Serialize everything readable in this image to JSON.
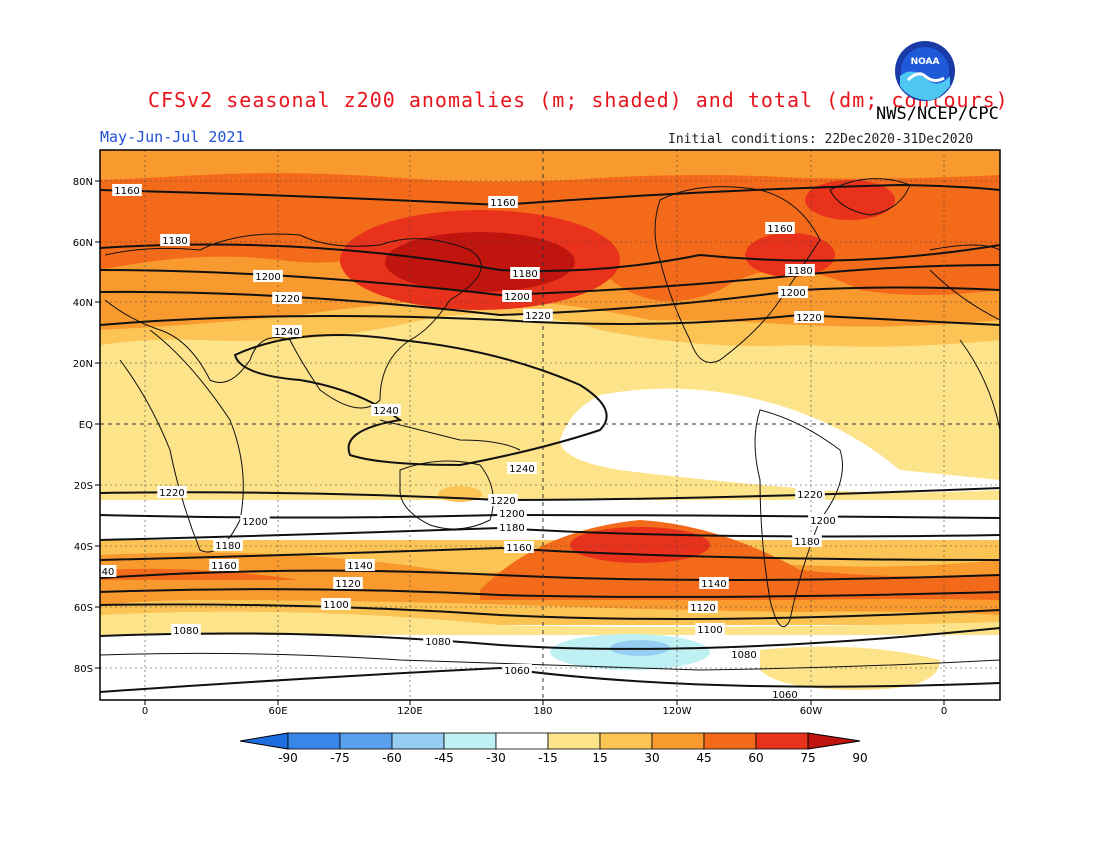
{
  "title": "CFSv2 seasonal z200 anomalies (m; shaded) and total (dm; contours)",
  "period": "May-Jun-Jul 2021",
  "initial_conditions": "Initial conditions: 22Dec2020-31Dec2020",
  "agency": "NWS/NCEP/CPC",
  "logo_text": "NOAA",
  "colors": {
    "title": "#e8141c",
    "period": "#2050d8",
    "scale": [
      "#1e6ee0",
      "#3a86e8",
      "#5aa0ee",
      "#96cdf2",
      "#bff0f4",
      "#ffffff",
      "#fde38a",
      "#fbc455",
      "#f99a2e",
      "#f36a1a",
      "#e8321c",
      "#c0140e"
    ]
  },
  "lat_labels": [
    "80N",
    "60N",
    "40N",
    "20N",
    "EQ",
    "20S",
    "40S",
    "60S",
    "80S"
  ],
  "lon_labels": [
    "0",
    "60E",
    "120E",
    "180",
    "120W",
    "60W",
    "0"
  ],
  "colorbar_labels": [
    "-90",
    "-75",
    "-60",
    "-45",
    "-30",
    "-15",
    "15",
    "30",
    "45",
    "60",
    "75",
    "90"
  ],
  "contour_labels": [
    {
      "text": "1160"
    },
    {
      "text": "1160"
    },
    {
      "text": "1160"
    },
    {
      "text": "1180"
    },
    {
      "text": "1180"
    },
    {
      "text": "1180"
    },
    {
      "text": "1200"
    },
    {
      "text": "1200"
    },
    {
      "text": "1200"
    },
    {
      "text": "1220"
    },
    {
      "text": "1220"
    },
    {
      "text": "1220"
    },
    {
      "text": "1240"
    },
    {
      "text": "1240"
    },
    {
      "text": "1240"
    },
    {
      "text": "1220"
    },
    {
      "text": "1220"
    },
    {
      "text": "1220"
    },
    {
      "text": "1200"
    },
    {
      "text": "1200"
    },
    {
      "text": "1200"
    },
    {
      "text": "1180"
    },
    {
      "text": "1180"
    },
    {
      "text": "1180"
    },
    {
      "text": "1160"
    },
    {
      "text": "1160"
    },
    {
      "text": "40"
    },
    {
      "text": "1140"
    },
    {
      "text": "1140"
    },
    {
      "text": "1120"
    },
    {
      "text": "1120"
    },
    {
      "text": "1100"
    },
    {
      "text": "1100"
    },
    {
      "text": "1080"
    },
    {
      "text": "1080"
    },
    {
      "text": "1080"
    },
    {
      "text": "1060"
    },
    {
      "text": "1060"
    }
  ]
}
